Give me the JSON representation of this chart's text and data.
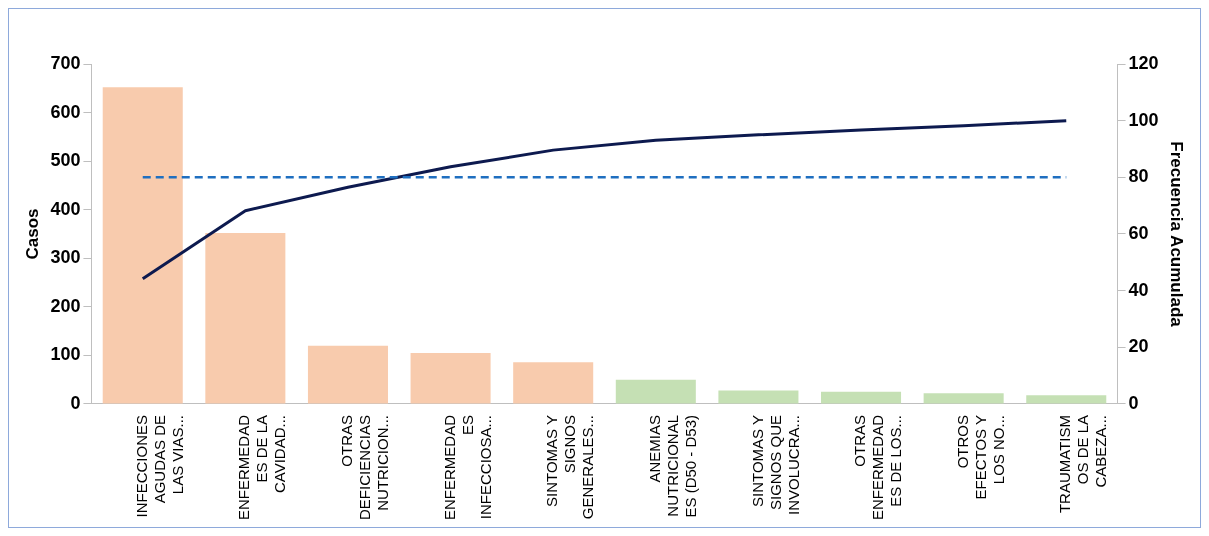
{
  "chart_data": {
    "type": "bar",
    "ylabel": "Casos",
    "y2label": "Frecuencia Acumulada",
    "categories": [
      "INFECCIONES\nAGUDAS DE\nLAS VIAS...",
      "ENFERMEDAD\nES DE LA\nCAVIDAD...",
      "OTRAS\nDEFICIENCIAS\nNUTRICION...",
      "ENFERMEDAD\nES\nINFECCIOSA...",
      "SINTOMAS Y\nSIGNOS\nGENERALES...",
      "ANEMIAS\nNUTRICIONAL\nES (D50 - D53)",
      "SINTOMAS Y\nSIGNOS QUE\nINVOLUCRA...",
      "OTRAS\nENFERMEDAD\nES DE LOS...",
      "OTROS\nEFECTOS Y\nLOS NO...",
      "TRAUMATISM\nOS DE LA\nCABEZA..."
    ],
    "series": [
      {
        "colors": [
          "#f8cbad",
          "#f8cbad",
          "#f8cbad",
          "#f8cbad",
          "#f8cbad",
          "#c5e0b4",
          "#c5e0b4",
          "#c5e0b4",
          "#c5e0b4",
          "#c5e0b4"
        ],
        "values": [
          652,
          352,
          120,
          105,
          86,
          50,
          28,
          25,
          22,
          18
        ]
      },
      {
        "type": "line",
        "axis": "y2",
        "color": "#0d1a4f",
        "values": [
          44.2,
          68.2,
          76.5,
          83.7,
          89.6,
          93.1,
          95.0,
          96.7,
          98.2,
          100
        ]
      }
    ],
    "ylim": [
      0,
      700
    ],
    "yticks": [
      0,
      100,
      200,
      300,
      400,
      500,
      600,
      700
    ],
    "y2lim": [
      0,
      120
    ],
    "y2ticks": [
      0,
      20,
      40,
      60,
      80,
      100,
      120
    ],
    "ref_lines": [
      {
        "axis": "y2",
        "value": 80,
        "color": "#1f6fc0",
        "line_style": "dashed"
      }
    ],
    "grid": false,
    "legend": false,
    "marker": "none"
  }
}
